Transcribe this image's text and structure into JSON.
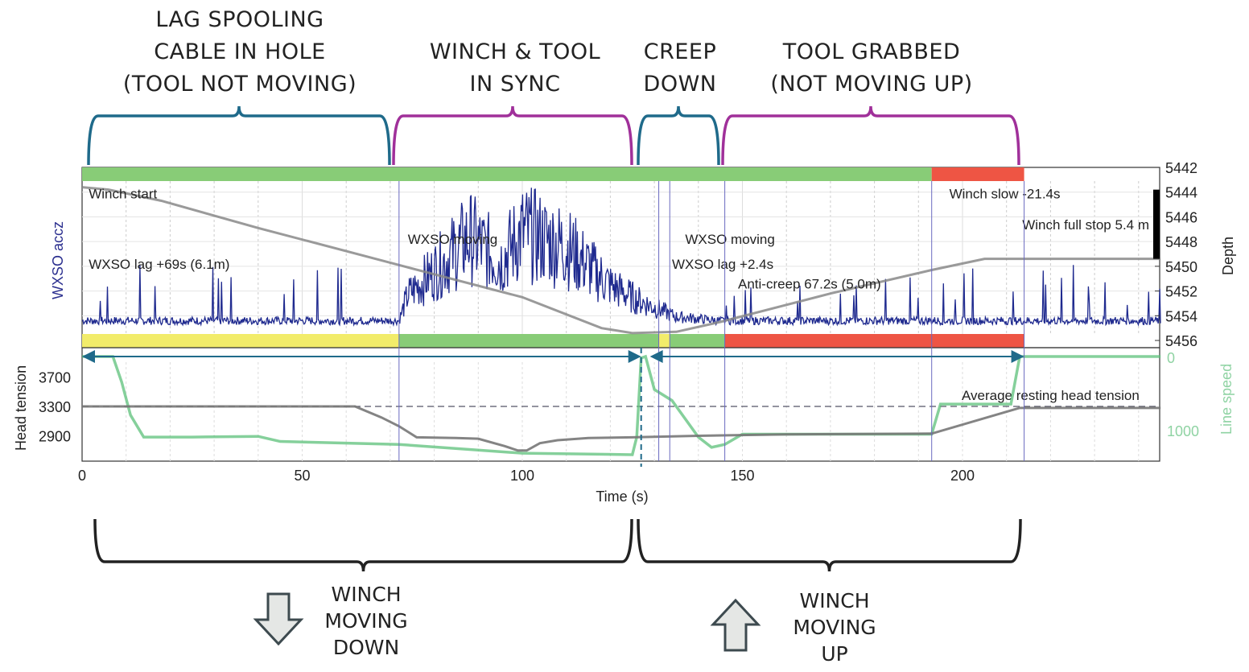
{
  "phases": [
    {
      "label": "LAG SPOOLING\nCABLE IN HOLE\n(TOOL NOT MOVING)",
      "color": "#1f6a8a",
      "t0": 0,
      "t1": 72
    },
    {
      "label": "WINCH & TOOL\nIN SYNC",
      "color": "#a0309a",
      "t0": 72,
      "t1": 128
    },
    {
      "label": "CREEP\nDOWN",
      "color": "#1f6a8a",
      "t0": 129,
      "t1": 148
    },
    {
      "label": "TOOL GRABBED\n(NOT MOVING UP)",
      "color": "#a0309a",
      "t0": 149,
      "t1": 218
    }
  ],
  "winch": {
    "down": {
      "label": "WINCH\nMOVING\nDOWN",
      "icon": "arrow-down-icon"
    },
    "up": {
      "label": "WINCH\nMOVING\nUP",
      "icon": "arrow-up-icon"
    }
  },
  "chart_data": {
    "type": "line",
    "xlabel": "Time (s)",
    "xlim": [
      0,
      245
    ],
    "xticks": [
      0,
      50,
      100,
      150,
      200
    ],
    "top_panel": {
      "left_label": "WXSO accz",
      "right_label": "Depth",
      "depth_lim": [
        5442,
        5456
      ],
      "depth_ticks": [
        5442,
        5444,
        5446,
        5448,
        5450,
        5452,
        5454,
        5456
      ],
      "depth_series": [
        [
          0,
          5443.6
        ],
        [
          6,
          5443.8
        ],
        [
          18,
          5444.7
        ],
        [
          40,
          5446.9
        ],
        [
          72,
          5449.9
        ],
        [
          100,
          5452.5
        ],
        [
          118,
          5455.0
        ],
        [
          125,
          5455.4
        ],
        [
          135,
          5455.3
        ],
        [
          145,
          5454.5
        ],
        [
          170,
          5452.2
        ],
        [
          193,
          5450.3
        ],
        [
          205,
          5449.4
        ],
        [
          245,
          5449.4
        ]
      ],
      "accz_envelope": [
        [
          0,
          0.08
        ],
        [
          72,
          0.08
        ],
        [
          74,
          0.35
        ],
        [
          80,
          0.6
        ],
        [
          88,
          0.95
        ],
        [
          95,
          0.7
        ],
        [
          100,
          1.0
        ],
        [
          110,
          0.85
        ],
        [
          120,
          0.45
        ],
        [
          126,
          0.3
        ],
        [
          135,
          0.12
        ],
        [
          145,
          0.08
        ],
        [
          245,
          0.08
        ]
      ],
      "top_bar": [
        {
          "t0": 0,
          "t1": 193,
          "color": "#88cc77"
        },
        {
          "t0": 193,
          "t1": 214,
          "color": "#ee5544"
        }
      ],
      "bottom_bar": [
        {
          "t0": 0,
          "t1": 72,
          "color": "#f2ec6a"
        },
        {
          "t0": 72,
          "t1": 131,
          "color": "#88cc77"
        },
        {
          "t0": 131,
          "t1": 133.5,
          "color": "#f2ec6a"
        },
        {
          "t0": 133.5,
          "t1": 146,
          "color": "#88cc77"
        },
        {
          "t0": 146,
          "t1": 214,
          "color": "#ee5544"
        }
      ],
      "annotations": [
        {
          "text": "Winch start",
          "t": 1.5,
          "depth": 5444.5
        },
        {
          "text": "WXSO lag +69s (6.1m)",
          "t": 1.5,
          "depth": 5450.2
        },
        {
          "text": "WXSO moving",
          "t": 74,
          "depth": 5448.2
        },
        {
          "text": "WXSO moving",
          "t": 137,
          "depth": 5448.2
        },
        {
          "text": "WXSO lag +2.4s",
          "t": 134,
          "depth": 5450.2
        },
        {
          "text": "Anti-creep 67.2s (5.0m)",
          "t": 149,
          "depth": 5451.8
        },
        {
          "text": "Winch slow -21.4s",
          "t": 197,
          "depth": 5444.5
        },
        {
          "text": "Winch full stop 5.4 m",
          "t": 217,
          "depth": 5447.0
        }
      ]
    },
    "bottom_panel": {
      "left_label": "Head tension",
      "right_label": "Line speed",
      "tension_ticks": [
        3700,
        3300,
        2900
      ],
      "speed_ticks": [
        0,
        1000
      ],
      "head_tension": [
        [
          0,
          3300
        ],
        [
          62,
          3300
        ],
        [
          68,
          3150
        ],
        [
          72,
          3030
        ],
        [
          76,
          2880
        ],
        [
          85,
          2870
        ],
        [
          90,
          2860
        ],
        [
          96,
          2760
        ],
        [
          99,
          2700
        ],
        [
          101,
          2700
        ],
        [
          104,
          2800
        ],
        [
          108,
          2840
        ],
        [
          115,
          2870
        ],
        [
          125,
          2880
        ],
        [
          140,
          2900
        ],
        [
          160,
          2920
        ],
        [
          193,
          2930
        ],
        [
          213,
          3280
        ],
        [
          245,
          3280
        ]
      ],
      "line_speed": [
        [
          0,
          0
        ],
        [
          7,
          0
        ],
        [
          9,
          350
        ],
        [
          11,
          800
        ],
        [
          14,
          1100
        ],
        [
          25,
          1100
        ],
        [
          40,
          1090
        ],
        [
          45,
          1160
        ],
        [
          72,
          1200
        ],
        [
          100,
          1320
        ],
        [
          125,
          1340
        ],
        [
          126,
          1100
        ],
        [
          127,
          20
        ],
        [
          128,
          0
        ],
        [
          130,
          450
        ],
        [
          134,
          600
        ],
        [
          140,
          1100
        ],
        [
          143,
          1240
        ],
        [
          146,
          1200
        ],
        [
          150,
          1060
        ],
        [
          170,
          1060
        ],
        [
          193,
          1060
        ],
        [
          195,
          650
        ],
        [
          211,
          650
        ],
        [
          213,
          0
        ],
        [
          245,
          0
        ]
      ],
      "average_tension": 3300,
      "average_label": "Average resting head tension",
      "event_lines": [
        72,
        131,
        133.5,
        146,
        193,
        214
      ],
      "dashed_line": 127,
      "arrows": [
        [
          0,
          127
        ],
        [
          129,
          214
        ]
      ]
    }
  }
}
